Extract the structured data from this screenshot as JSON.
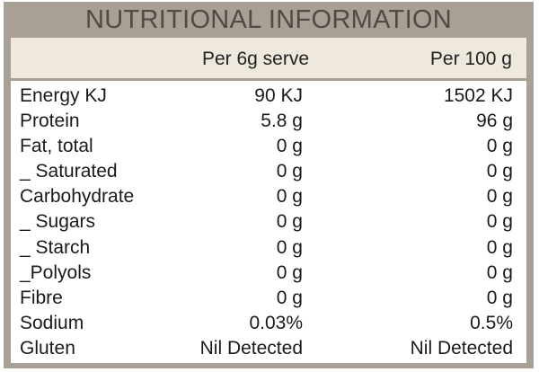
{
  "title": "NUTRITIONAL INFORMATION",
  "columns": [
    "Per 6g serve",
    "Per 100 g"
  ],
  "rows": [
    {
      "label": "Energy KJ",
      "per_serve": "90 KJ",
      "per_100g": "1502 KJ"
    },
    {
      "label": "Protein",
      "per_serve": "5.8 g",
      "per_100g": "96 g"
    },
    {
      "label": "Fat, total",
      "per_serve": "0 g",
      "per_100g": "0 g"
    },
    {
      "label": "_ Saturated",
      "per_serve": "0 g",
      "per_100g": "0 g"
    },
    {
      "label": "Carbohydrate",
      "per_serve": "0 g",
      "per_100g": "0 g"
    },
    {
      "label": "_ Sugars",
      "per_serve": "0 g",
      "per_100g": "0 g"
    },
    {
      "label": "_ Starch",
      "per_serve": "0 g",
      "per_100g": "0 g"
    },
    {
      "label": "_Polyols",
      "per_serve": "0 g",
      "per_100g": "0 g"
    },
    {
      "label": "Fibre",
      "per_serve": "0 g",
      "per_100g": "0 g"
    },
    {
      "label": "Sodium",
      "per_serve": "0.03%",
      "per_100g": "0.5%"
    },
    {
      "label": "Gluten",
      "per_serve": "Nil Detected",
      "per_100g": "Nil Detected"
    }
  ],
  "colors": {
    "frame": "#a89f95",
    "header_band": "#efe8dd",
    "title_text": "#514a45",
    "body_background": "#ffffff"
  }
}
